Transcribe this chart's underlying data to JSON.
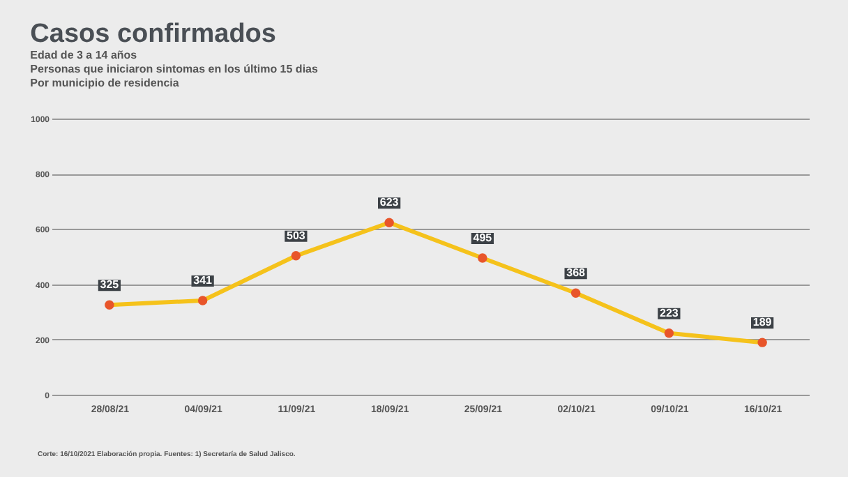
{
  "chart_data": {
    "type": "line",
    "title": "Casos confirmados",
    "subtitle": [
      "Edad de 3 a 14 años",
      "Personas que iniciaron sintomas en los último 15 dias",
      "Por municipio de residencia"
    ],
    "categories": [
      "28/08/21",
      "04/09/21",
      "11/09/21",
      "18/09/21",
      "25/09/21",
      "02/10/21",
      "09/10/21",
      "16/10/21"
    ],
    "series": [
      {
        "color": "#f5c21b",
        "values": [
          325,
          341,
          503,
          623,
          495,
          368,
          223,
          189
        ]
      }
    ],
    "marker": "circle",
    "line_style": "solid",
    "data_labels": true,
    "ylim": [
      0,
      1000
    ],
    "yticks": [
      0,
      200,
      400,
      600,
      800,
      1000
    ],
    "grid": "y",
    "annotations": [
      "Corte: 16/10/2021  Elaboración propia.  Fuentes: 1) Secretaría de Salud Jalisco."
    ]
  }
}
